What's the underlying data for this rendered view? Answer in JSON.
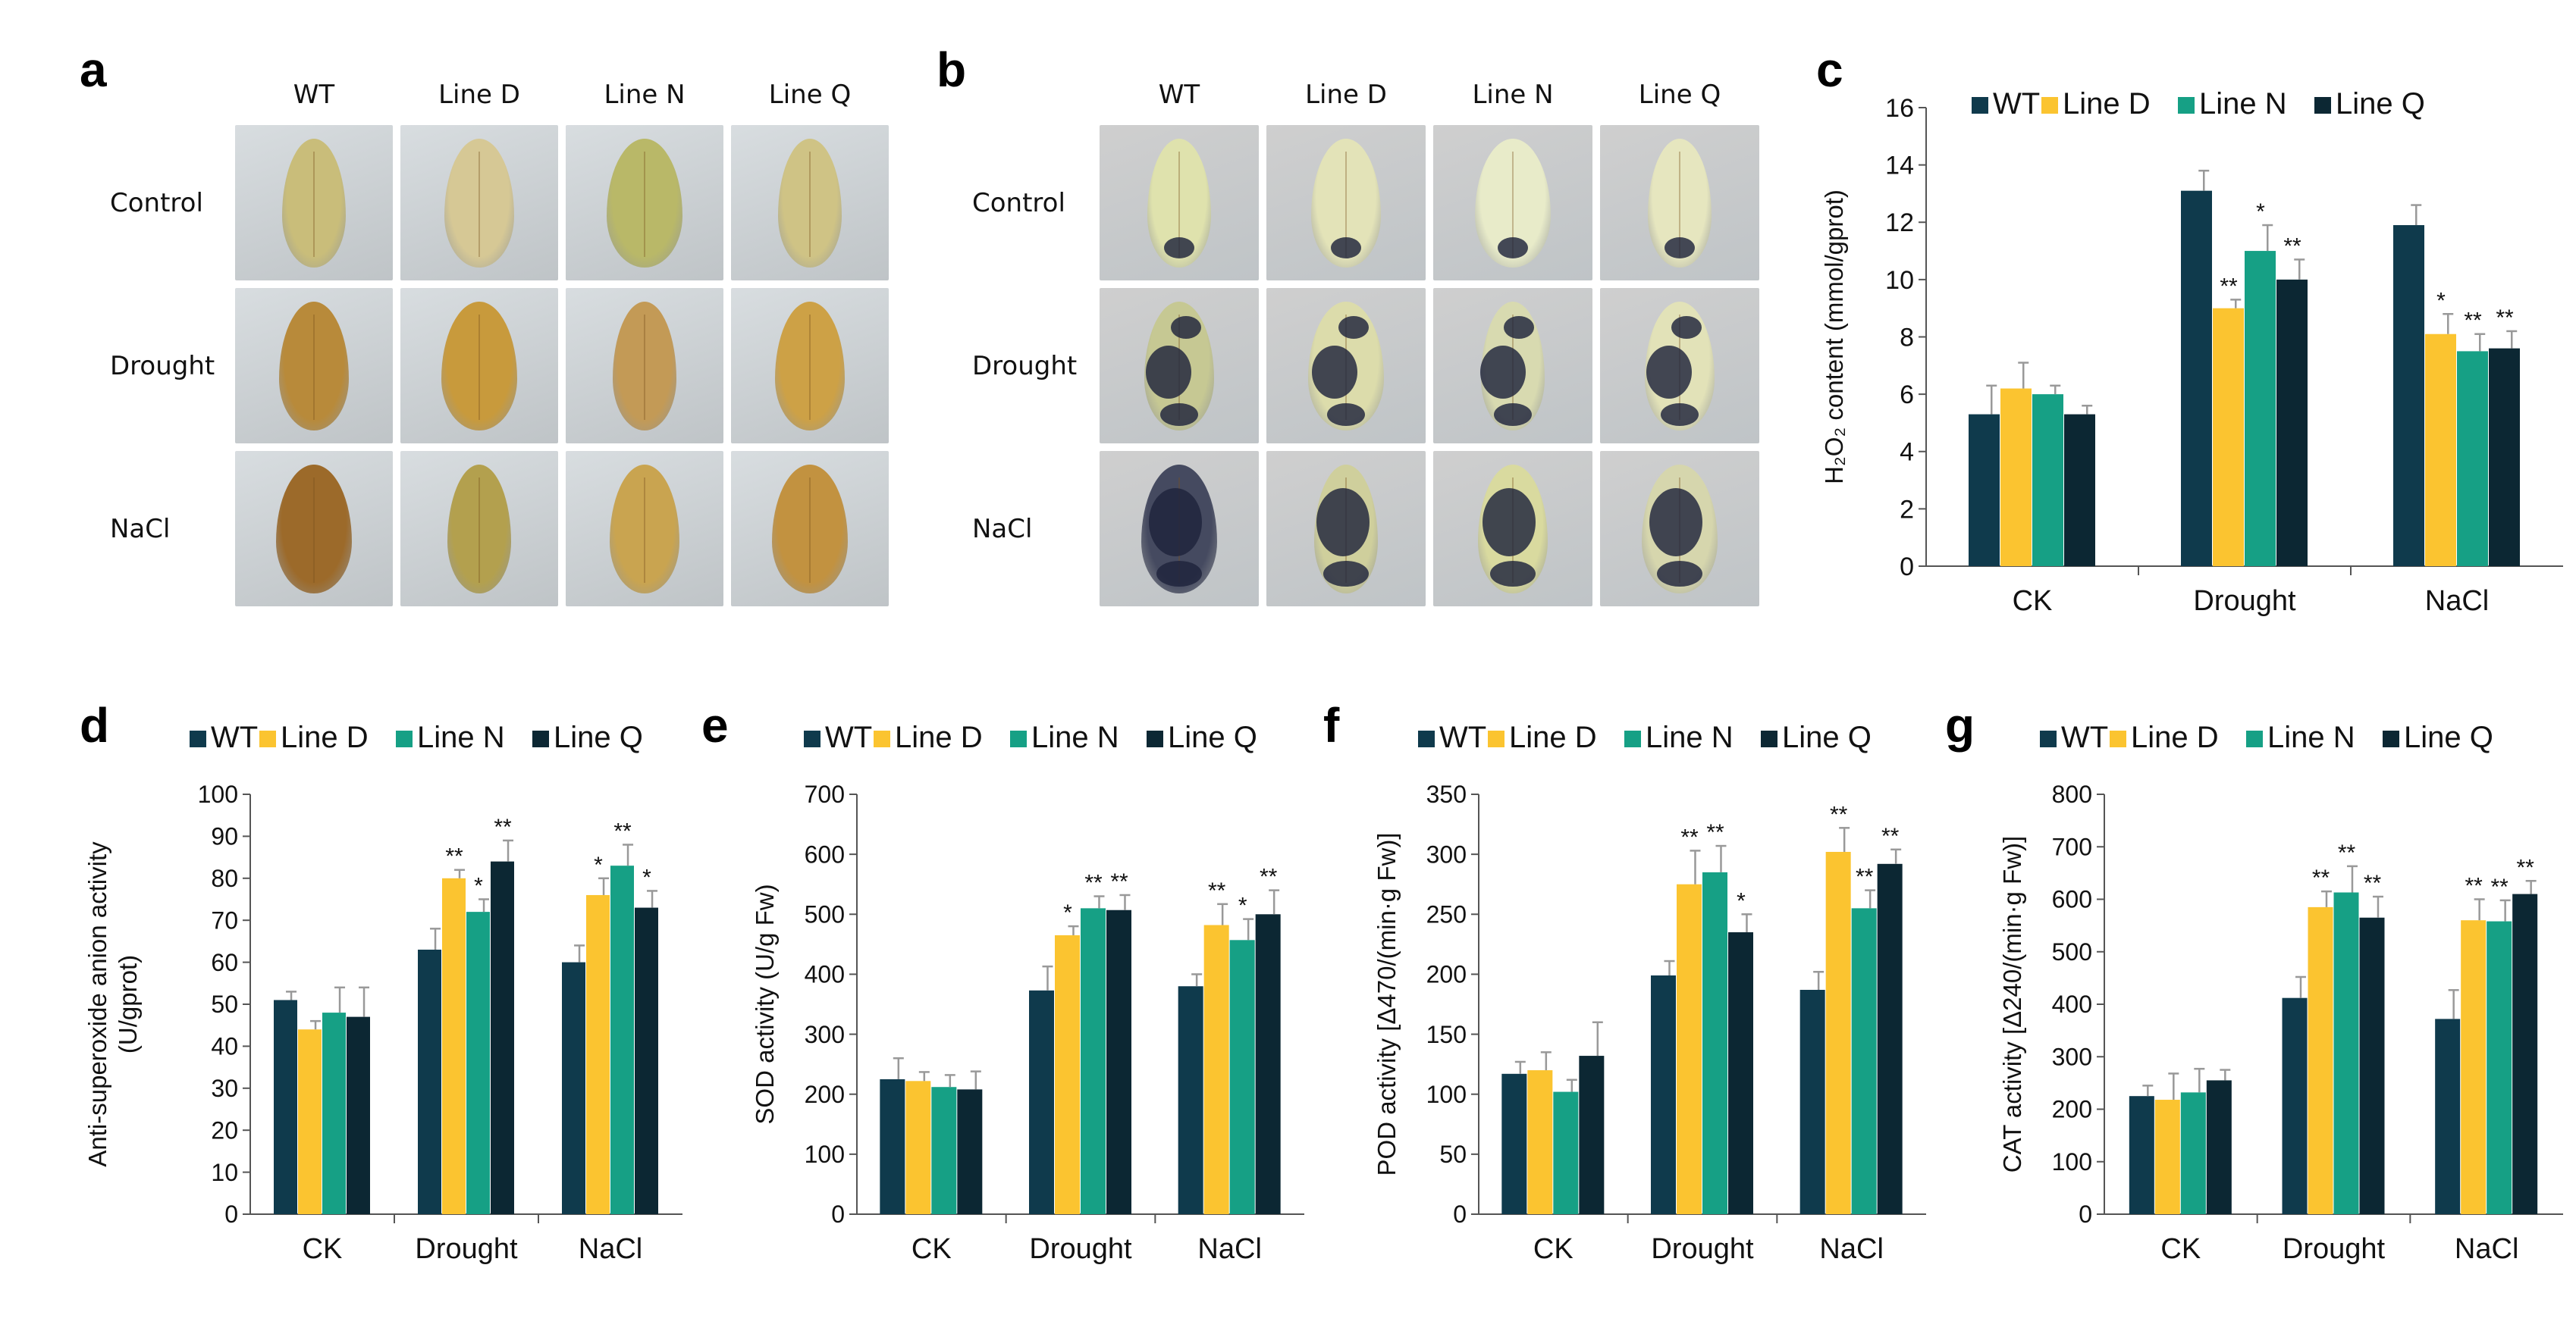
{
  "panels": {
    "a": "a",
    "b": "b",
    "c": "c",
    "d": "d",
    "e": "e",
    "f": "f",
    "g": "g"
  },
  "photo_panels": [
    {
      "id": "a",
      "columns": [
        "WT",
        "Line D",
        "Line N",
        "Line Q"
      ],
      "rows": [
        "Control",
        "Drought",
        "NaCl"
      ],
      "background": "#d8dde0",
      "leaf_colors": [
        [
          "#c9bd7a",
          "#d6c895",
          "#b9b868",
          "#cfc385"
        ],
        [
          "#b88a3a",
          "#c89a3c",
          "#c39a56",
          "#cda146"
        ],
        [
          "#9c6a2a",
          "#b3a04e",
          "#c9a450",
          "#c29240"
        ]
      ]
    },
    {
      "id": "b",
      "columns": [
        "WT",
        "Line D",
        "Line N",
        "Line Q"
      ],
      "rows": [
        "Control",
        "Drought",
        "NaCl"
      ],
      "background": "#cfcfcf",
      "leaf_colors": [
        [
          "#dfe2ad",
          "#e3e3b8",
          "#e8ebc9",
          "#e6e6bf"
        ],
        [
          "#c6c893",
          "#dcdcab",
          "#d8dab0",
          "#e2e2b8"
        ],
        [
          "#454a60",
          "#cfcf9c",
          "#d9da9f",
          "#d6d6ad"
        ]
      ]
    }
  ],
  "colors": {
    "wt": "#0f3a4c",
    "line_d": "#fbc430",
    "line_n": "#16a085",
    "line_q": "#0c2733"
  },
  "chart_data": [
    {
      "id": "c",
      "type": "bar",
      "title": "",
      "ylabel": "H₂O₂ content (mmol/gprot)",
      "ylim": [
        0,
        16
      ],
      "yticks": [
        0,
        2,
        4,
        6,
        8,
        10,
        12,
        14,
        16
      ],
      "categories": [
        "CK",
        "Drought",
        "NaCl"
      ],
      "legend": [
        "WT",
        "Line D",
        "Line N",
        "Line Q"
      ],
      "series": [
        {
          "name": "WT",
          "values": [
            5.3,
            13.1,
            11.9
          ],
          "errors": [
            1.0,
            0.7,
            0.7
          ],
          "marks": [
            "",
            "",
            ""
          ]
        },
        {
          "name": "Line D",
          "values": [
            6.2,
            9.0,
            8.1
          ],
          "errors": [
            0.9,
            0.3,
            0.7
          ],
          "marks": [
            "",
            "**",
            "*"
          ]
        },
        {
          "name": "Line N",
          "values": [
            6.0,
            11.0,
            7.5
          ],
          "errors": [
            0.3,
            0.9,
            0.6
          ],
          "marks": [
            "",
            "*",
            "**"
          ]
        },
        {
          "name": "Line Q",
          "values": [
            5.3,
            10.0,
            7.6
          ],
          "errors": [
            0.3,
            0.7,
            0.6
          ],
          "marks": [
            "",
            "**",
            "**"
          ]
        }
      ]
    },
    {
      "id": "d",
      "type": "bar",
      "title": "",
      "ylabel_lines": [
        "Anti-superoxide anion activity",
        "(U/gprot)"
      ],
      "ylim": [
        0,
        100
      ],
      "yticks": [
        0,
        10,
        20,
        30,
        40,
        50,
        60,
        70,
        80,
        90,
        100
      ],
      "categories": [
        "CK",
        "Drought",
        "NaCl"
      ],
      "legend": [
        "WT",
        "Line D",
        "Line N",
        "Line Q"
      ],
      "series": [
        {
          "name": "WT",
          "values": [
            51,
            63,
            60
          ],
          "errors": [
            2,
            5,
            4
          ],
          "marks": [
            "",
            "",
            ""
          ]
        },
        {
          "name": "Line D",
          "values": [
            44,
            80,
            76
          ],
          "errors": [
            2,
            2,
            4
          ],
          "marks": [
            "",
            "**",
            "*"
          ]
        },
        {
          "name": "Line N",
          "values": [
            48,
            72,
            83
          ],
          "errors": [
            6,
            3,
            5
          ],
          "marks": [
            "",
            "*",
            "**"
          ]
        },
        {
          "name": "Line Q",
          "values": [
            47,
            84,
            73
          ],
          "errors": [
            7,
            5,
            4
          ],
          "marks": [
            "",
            "**",
            "*"
          ]
        }
      ]
    },
    {
      "id": "e",
      "type": "bar",
      "title": "",
      "ylabel": "SOD activity (U/g Fw)",
      "ylim": [
        0,
        700
      ],
      "yticks": [
        0,
        100,
        200,
        300,
        400,
        500,
        600,
        700
      ],
      "categories": [
        "CK",
        "Drought",
        "NaCl"
      ],
      "legend": [
        "WT",
        "Line D",
        "Line N",
        "Line Q"
      ],
      "series": [
        {
          "name": "WT",
          "values": [
            225,
            373,
            380
          ],
          "errors": [
            35,
            40,
            20
          ],
          "marks": [
            "",
            "",
            ""
          ]
        },
        {
          "name": "Line D",
          "values": [
            222,
            465,
            482
          ],
          "errors": [
            15,
            15,
            35
          ],
          "marks": [
            "",
            "*",
            "**"
          ]
        },
        {
          "name": "Line N",
          "values": [
            212,
            510,
            457
          ],
          "errors": [
            20,
            20,
            35
          ],
          "marks": [
            "",
            "**",
            "*"
          ]
        },
        {
          "name": "Line Q",
          "values": [
            208,
            507,
            500
          ],
          "errors": [
            30,
            25,
            40
          ],
          "marks": [
            "",
            "**",
            "**"
          ]
        }
      ]
    },
    {
      "id": "f",
      "type": "bar",
      "title": "",
      "ylabel": "POD activity [Δ470/(min·g Fw)]",
      "ylim": [
        0,
        350
      ],
      "yticks": [
        0,
        50,
        100,
        150,
        200,
        250,
        300,
        350
      ],
      "categories": [
        "CK",
        "Drought",
        "NaCl"
      ],
      "legend": [
        "WT",
        "Line D",
        "Line N",
        "Line Q"
      ],
      "series": [
        {
          "name": "WT",
          "values": [
            117,
            199,
            187
          ],
          "errors": [
            10,
            12,
            15
          ],
          "marks": [
            "",
            "",
            ""
          ]
        },
        {
          "name": "Line D",
          "values": [
            120,
            275,
            302
          ],
          "errors": [
            15,
            28,
            20
          ],
          "marks": [
            "",
            "**",
            "**"
          ]
        },
        {
          "name": "Line N",
          "values": [
            102,
            285,
            255
          ],
          "errors": [
            10,
            22,
            15
          ],
          "marks": [
            "",
            "**",
            "**"
          ]
        },
        {
          "name": "Line Q",
          "values": [
            132,
            235,
            292
          ],
          "errors": [
            28,
            15,
            12
          ],
          "marks": [
            "",
            "*",
            "**"
          ]
        }
      ]
    },
    {
      "id": "g",
      "type": "bar",
      "title": "",
      "ylabel": "CAT activity [Δ240/(min·g Fw)]",
      "ylim": [
        0,
        800
      ],
      "yticks": [
        0,
        100,
        200,
        300,
        400,
        500,
        600,
        700,
        800
      ],
      "categories": [
        "CK",
        "Drought",
        "NaCl"
      ],
      "legend": [
        "WT",
        "Line D",
        "Line N",
        "Line Q"
      ],
      "series": [
        {
          "name": "WT",
          "values": [
            225,
            412,
            372
          ],
          "errors": [
            20,
            40,
            55
          ],
          "marks": [
            "",
            "",
            ""
          ]
        },
        {
          "name": "Line D",
          "values": [
            218,
            585,
            560
          ],
          "errors": [
            50,
            30,
            40
          ],
          "marks": [
            "",
            "**",
            "**"
          ]
        },
        {
          "name": "Line N",
          "values": [
            232,
            613,
            558
          ],
          "errors": [
            45,
            50,
            40
          ],
          "marks": [
            "",
            "**",
            "**"
          ]
        },
        {
          "name": "Line Q",
          "values": [
            255,
            565,
            610
          ],
          "errors": [
            20,
            40,
            25
          ],
          "marks": [
            "",
            "**",
            "**"
          ]
        }
      ]
    }
  ]
}
